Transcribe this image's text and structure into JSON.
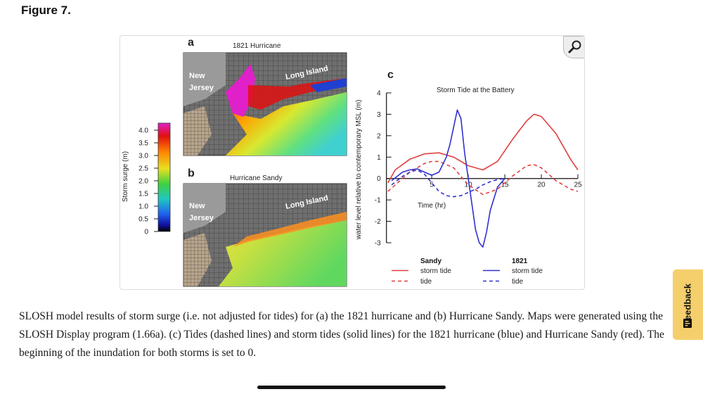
{
  "figure_label": "Figure 7.",
  "panels": {
    "a": {
      "letter": "a",
      "title": "1821 Hurricane",
      "label_nj": [
        "New",
        "Jersey"
      ],
      "label_li": "Long Island"
    },
    "b": {
      "letter": "b",
      "title": "Hurricane Sandy",
      "label_nj": [
        "New",
        "Jersey"
      ],
      "label_li": "Long Island"
    },
    "c": {
      "letter": "c"
    }
  },
  "colorbar": {
    "label": "Storm surge (m)",
    "ticks": [
      "4.0",
      "3.5",
      "3.0",
      "2.5",
      "2.0",
      "1.5",
      "1.0",
      "0.5",
      "0"
    ],
    "colors": [
      "#e020c8",
      "#e01010",
      "#ff8000",
      "#e8e020",
      "#40d040",
      "#20c8c0",
      "#2060f0",
      "#1010a0",
      "#000000"
    ]
  },
  "chart_data": {
    "type": "line",
    "title": "Storm Tide at the Battery",
    "xlabel": "Time (hr)",
    "ylabel": "water level relative to contemporary MSL (m)",
    "xlim": [
      0,
      25
    ],
    "ylim": [
      -3,
      4
    ],
    "x_ticks": [
      5,
      10,
      15,
      20,
      25
    ],
    "y_ticks": [
      4,
      3,
      2,
      1,
      0,
      -1,
      -2,
      -3
    ],
    "grid": false,
    "legend": {
      "placement": "bottom",
      "groups": [
        {
          "header": "Sandy",
          "entries": [
            "storm tide",
            "tide"
          ]
        },
        {
          "header": "1821",
          "entries": [
            "storm tide",
            "tide"
          ]
        }
      ]
    },
    "series": [
      {
        "group": "Sandy",
        "name": "storm tide",
        "color": "#e04040",
        "style": "solid",
        "x": [
          -1,
          0,
          2,
          4,
          6,
          8,
          10,
          12,
          14,
          16,
          18,
          19,
          20,
          22,
          24,
          25
        ],
        "y": [
          -0.2,
          0.4,
          0.9,
          1.15,
          1.2,
          1.0,
          0.6,
          0.4,
          0.8,
          1.8,
          2.7,
          3.0,
          2.9,
          2.1,
          0.9,
          0.4
        ]
      },
      {
        "group": "Sandy",
        "name": "tide",
        "color": "#e04040",
        "style": "dashed",
        "x": [
          -1,
          0,
          2,
          4,
          5,
          6,
          8,
          10,
          12,
          14,
          16,
          18,
          19,
          20,
          22,
          24,
          25
        ],
        "y": [
          -0.6,
          -0.3,
          0.3,
          0.7,
          0.8,
          0.8,
          0.5,
          -0.3,
          -0.75,
          -0.5,
          0.1,
          0.6,
          0.65,
          0.5,
          -0.1,
          -0.5,
          -0.6
        ]
      },
      {
        "group": "1821",
        "name": "storm tide",
        "color": "#3030d0",
        "style": "solid",
        "x": [
          -0.5,
          1,
          2,
          3,
          4,
          5,
          6,
          7,
          7.5,
          8,
          8.5,
          9,
          9.5,
          10,
          10.5,
          11,
          11.5,
          12,
          12.5,
          13,
          14,
          15
        ],
        "y": [
          -0.1,
          0.3,
          0.4,
          0.45,
          0.3,
          0.15,
          0.3,
          1.0,
          1.6,
          2.4,
          3.2,
          2.8,
          1.2,
          0.0,
          -1.2,
          -2.4,
          -3.0,
          -3.2,
          -2.5,
          -1.5,
          -0.4,
          0.0
        ]
      },
      {
        "group": "1821",
        "name": "tide",
        "color": "#3030d0",
        "style": "dashed",
        "x": [
          -0.5,
          1,
          2,
          3,
          4,
          5,
          6,
          7,
          8,
          9,
          10,
          11,
          12,
          13,
          14,
          15
        ],
        "y": [
          -0.3,
          0.1,
          0.3,
          0.4,
          0.2,
          -0.2,
          -0.6,
          -0.8,
          -0.85,
          -0.8,
          -0.65,
          -0.5,
          -0.3,
          -0.15,
          -0.05,
          0.0
        ]
      }
    ]
  },
  "caption": "SLOSH model results of storm surge (i.e. not adjusted for tides) for (a) the 1821 hurricane and (b) Hurricane Sandy. Maps were generated using the SLOSH Display program (1.66a). (c) Tides (dashed lines) and storm tides (solid lines) for the 1821 hurricane (blue) and Hurricane Sandy (red). The beginning of the inundation for both storms is set to 0.",
  "feedback_label": "Feedback",
  "icons": {
    "zoom": "magnifier-icon",
    "feedback": "document-icon"
  }
}
